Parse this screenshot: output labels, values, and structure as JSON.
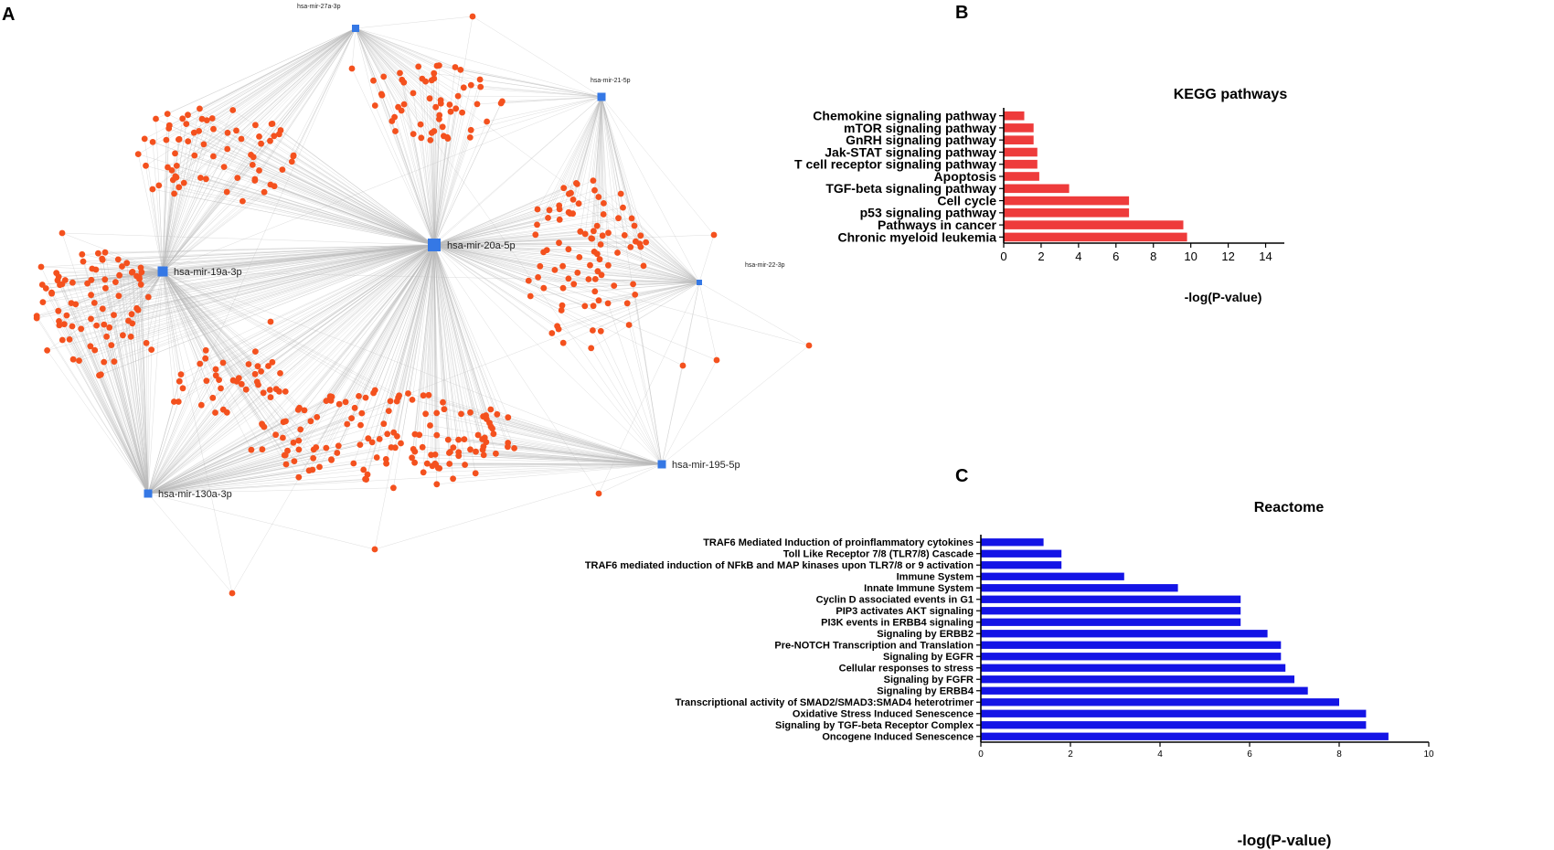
{
  "panels": {
    "a": "A",
    "b": "B",
    "c": "C"
  },
  "colors": {
    "gene_node": "#f4511e",
    "mirna_node": "#3578e5",
    "edge": "#b9b9b9",
    "kegg_bar": "#ee3b3b",
    "reactome_bar": "#1414e6",
    "axis": "#000000"
  },
  "network": {
    "mirnas": [
      {
        "id": "mir20a",
        "label": "hsa-mir-20a-5p"
      },
      {
        "id": "mir19a",
        "label": "hsa-mir-19a-3p"
      },
      {
        "id": "mir27a",
        "label": "hsa-mir-27a-3p"
      },
      {
        "id": "mir21",
        "label": "hsa-mir-21-5p"
      },
      {
        "id": "mir22",
        "label": "hsa-mir-22-3p"
      },
      {
        "id": "mir195",
        "label": "hsa-mir-195-5p"
      },
      {
        "id": "mir130a",
        "label": "hsa-mir-130a-3p"
      }
    ],
    "gene_node_shape": "circle",
    "mirna_node_shape": "square"
  },
  "chart_data": [
    {
      "type": "bar",
      "orientation": "horizontal",
      "title": "KEGG pathways",
      "xlabel": "-log(P-value)",
      "xlim": [
        0,
        15
      ],
      "xticks": [
        0,
        2,
        4,
        6,
        8,
        10,
        12,
        14
      ],
      "categories": [
        "Chemokine signaling pathway",
        "mTOR signaling pathway",
        "GnRH signaling pathway",
        "Jak-STAT signaling pathway",
        "T cell receptor signaling pathway",
        "Apoptosis",
        "TGF-beta signaling pathway",
        "Cell cycle",
        "p53 signaling pathway",
        "Pathways in cancer",
        "Chronic myeloid leukemia"
      ],
      "values": [
        1.1,
        1.6,
        1.6,
        1.8,
        1.8,
        1.9,
        3.5,
        6.7,
        6.7,
        9.6,
        9.8
      ],
      "grid": false
    },
    {
      "type": "bar",
      "orientation": "horizontal",
      "title": "Reactome",
      "xlabel": "-log(P-value)",
      "xlim": [
        0,
        10
      ],
      "xticks": [
        0,
        2,
        4,
        6,
        8,
        10
      ],
      "categories": [
        "TRAF6 Mediated Induction of proinflammatory cytokines",
        "Toll Like Receptor 7/8 (TLR7/8) Cascade",
        "TRAF6 mediated induction of NFkB and MAP kinases upon TLR7/8 or 9 activation",
        "Immune System",
        "Innate Immune System",
        "Cyclin D associated events in G1",
        "PIP3 activates AKT signaling",
        "PI3K events in ERBB4 signaling",
        "Signaling by ERBB2",
        "Pre-NOTCH Transcription and Translation",
        "Signaling by EGFR",
        "Cellular responses to stress",
        "Signaling by FGFR",
        "Signaling by ERBB4",
        "Transcriptional activity of SMAD2/SMAD3:SMAD4 heterotrimer",
        "Oxidative Stress Induced Senescence",
        "Signaling by TGF-beta Receptor Complex",
        "Oncogene Induced Senescence"
      ],
      "values": [
        1.4,
        1.8,
        1.8,
        3.2,
        4.4,
        5.8,
        5.8,
        5.8,
        6.4,
        6.7,
        6.7,
        6.8,
        7.0,
        7.3,
        8.0,
        8.6,
        8.6,
        9.1
      ],
      "grid": false
    }
  ]
}
